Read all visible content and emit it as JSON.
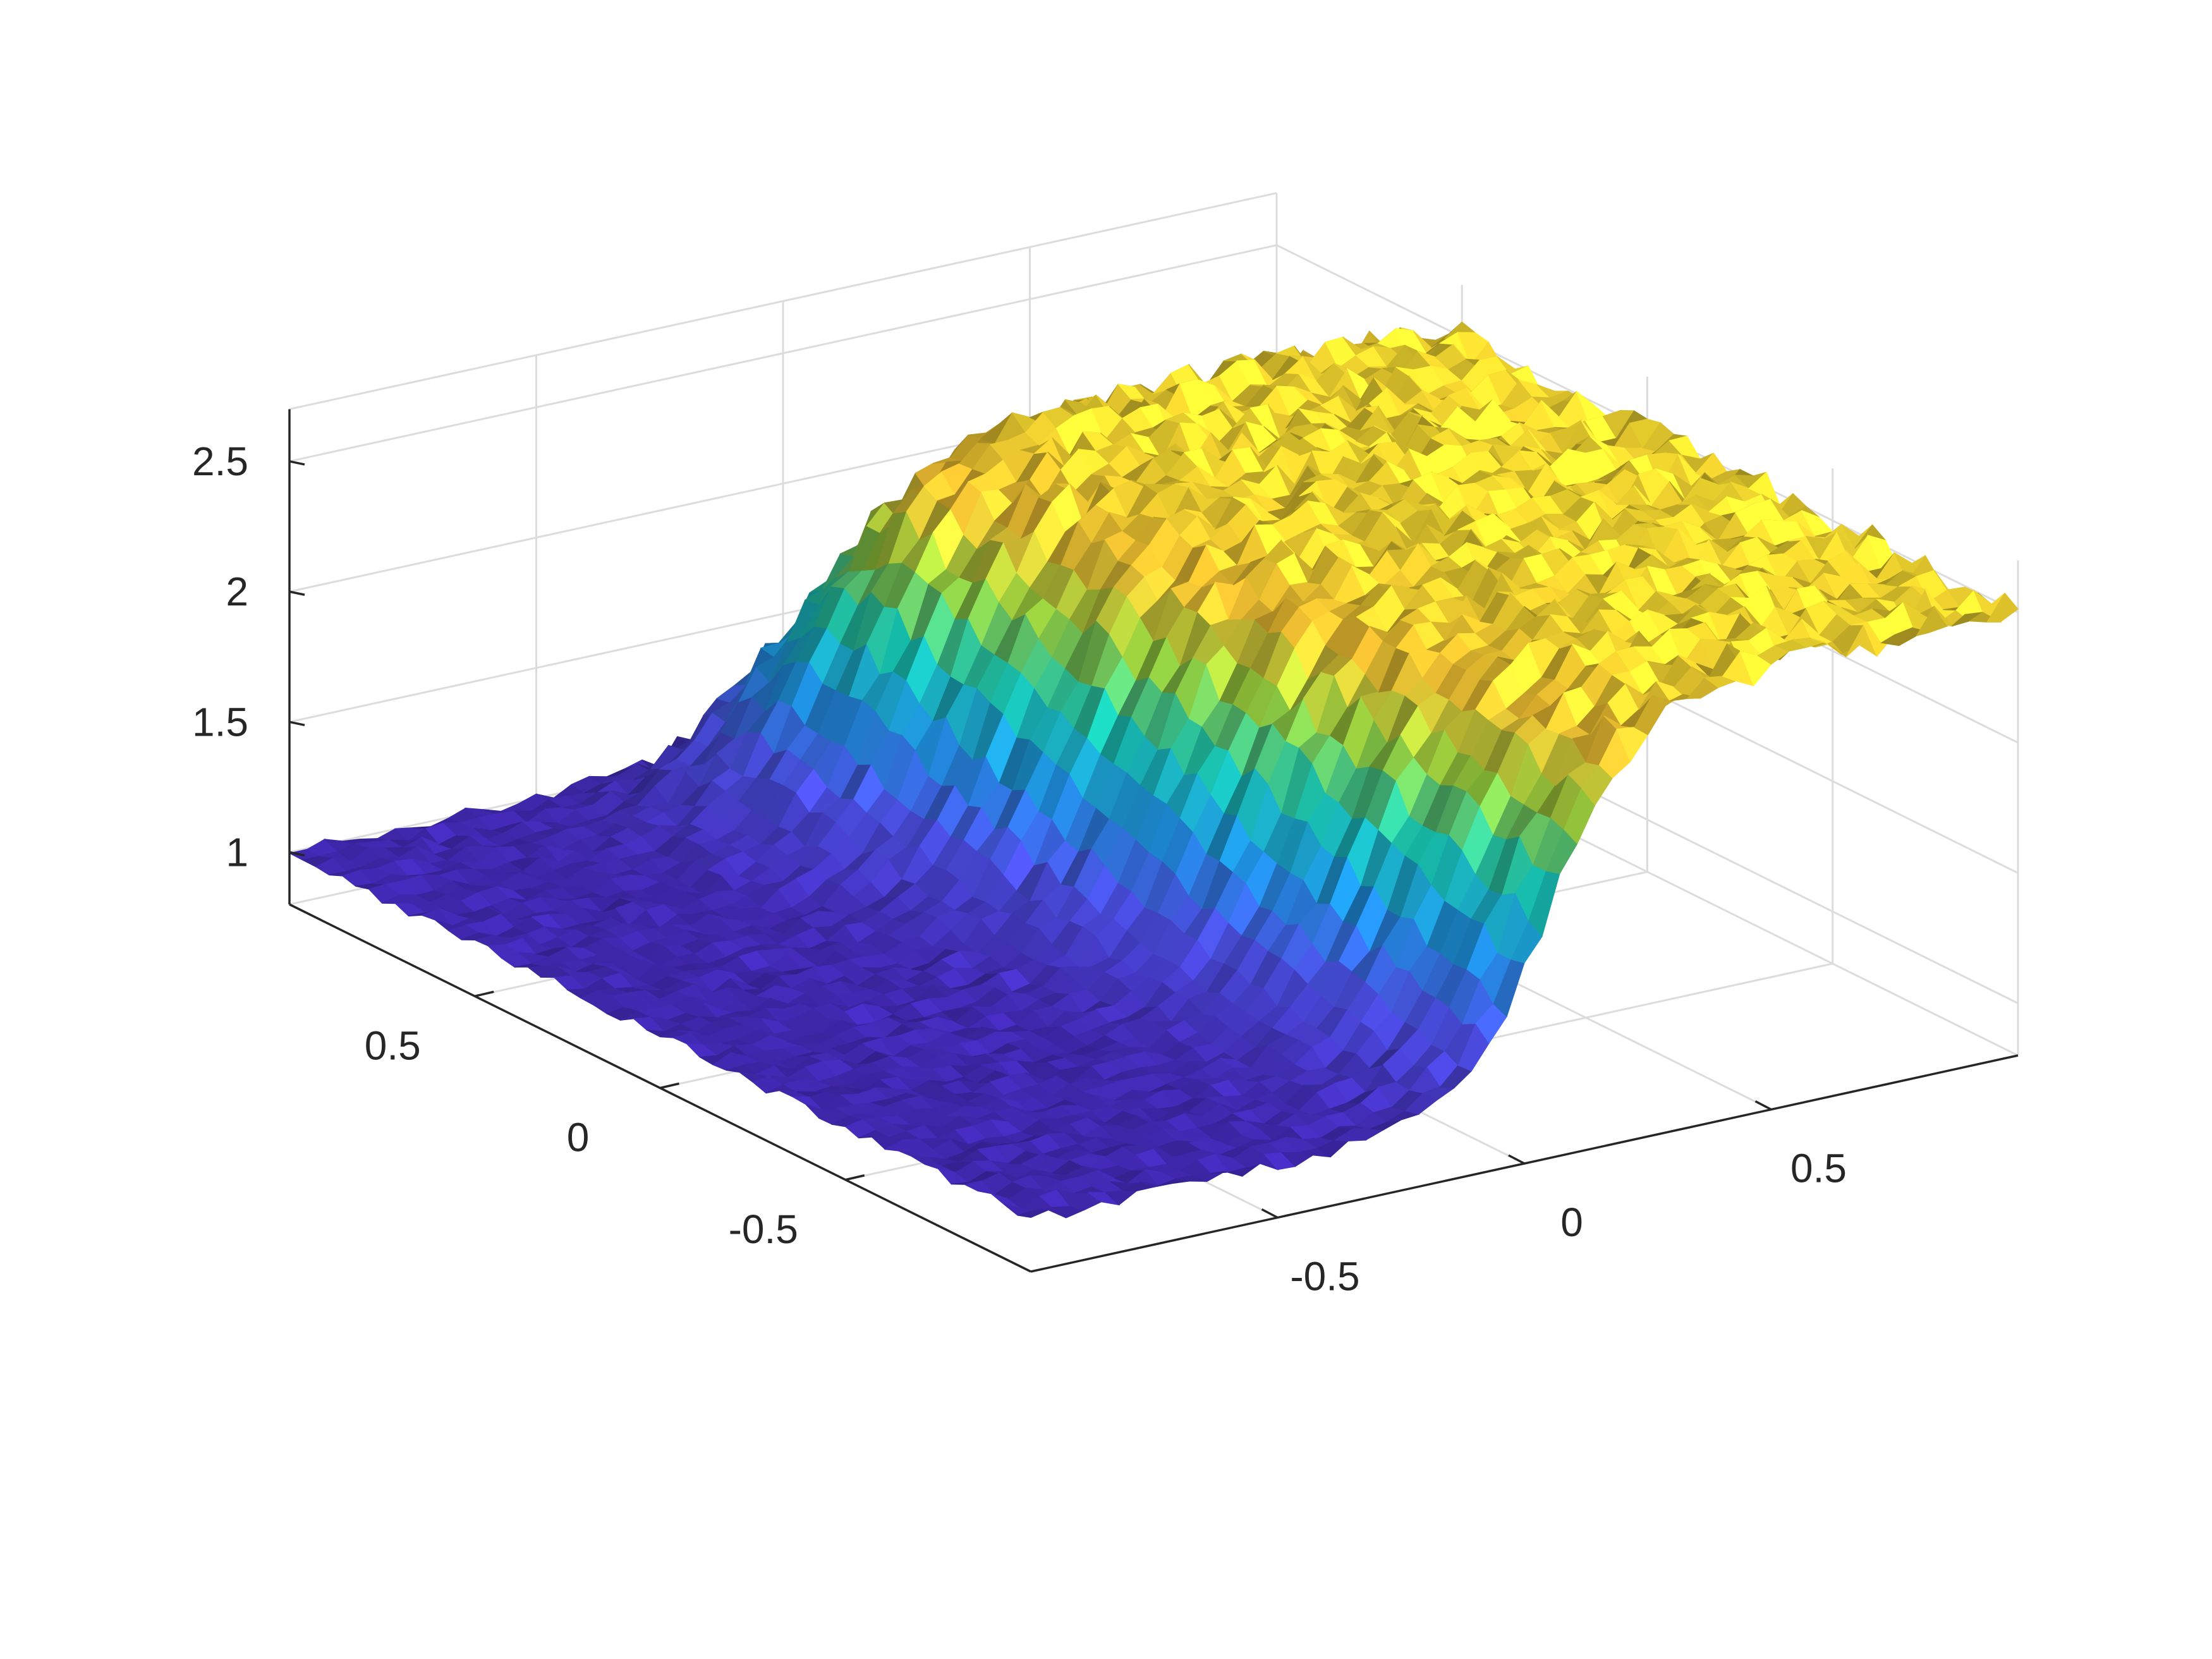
{
  "chart_data": {
    "type": "surface",
    "title": "",
    "xlabel": "",
    "ylabel": "",
    "zlabel": "",
    "xlim": [
      -1,
      1
    ],
    "ylim": [
      -1,
      1
    ],
    "zlim": [
      0.8,
      2.7
    ],
    "grid": true,
    "box": false,
    "legend": "none",
    "colormap": "parula-like (blue at low z to yellow at high z)",
    "colors": {
      "low": "#3E26A8",
      "mid_low": "#1F8FE0",
      "mid": "#17C1B0",
      "mid_high": "#8CC23B",
      "high": "#E8B830",
      "top": "#D9C42A",
      "axis": "#262626",
      "grid": "#DCDCDC"
    },
    "surface_model": {
      "description": "noisy sigmoid step along x, damped near y = 1 edge",
      "z_low": 1.0,
      "z_high": 2.5,
      "step_center_x": -0.1,
      "step_width": 0.35,
      "noise_amplitude": 0.04
    },
    "z_ticks": [
      {
        "value": 1,
        "label": "1"
      },
      {
        "value": 1.5,
        "label": "1.5"
      },
      {
        "value": 2,
        "label": "2"
      },
      {
        "value": 2.5,
        "label": "2.5"
      }
    ],
    "y_ticks": [
      {
        "value": 0.5,
        "label": "0.5"
      },
      {
        "value": 0,
        "label": "0"
      },
      {
        "value": -0.5,
        "label": "-0.5"
      }
    ],
    "x_ticks": [
      {
        "value": 0.5,
        "label": "0.5"
      },
      {
        "value": 0,
        "label": "0"
      },
      {
        "value": -0.5,
        "label": "-0.5"
      }
    ]
  }
}
